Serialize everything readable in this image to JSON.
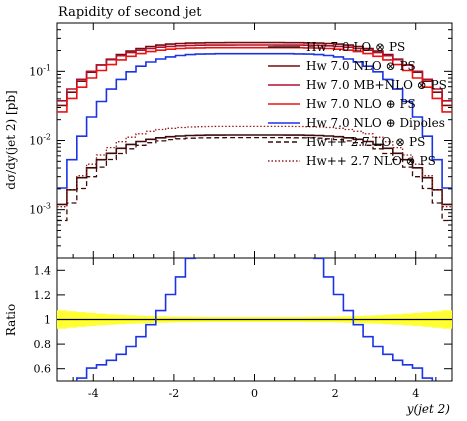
{
  "chart_data": {
    "type": "line",
    "title": "Rapidity of second jet",
    "ylabel": "dσ/dy(jet 2) [pb]",
    "xlabel": "y(jet 2)",
    "ratio_ylabel": "Ratio",
    "xlim": [
      -4.9,
      4.9
    ],
    "ylim": [
      0.0002,
      0.5
    ],
    "yscale": "log",
    "ratio_ylim": [
      0.5,
      1.5
    ],
    "x_ticks": [
      "-4",
      "-2",
      "0",
      "2",
      "4"
    ],
    "y_ticks": [
      "10^{-3}",
      "10^{-2}",
      "10^{-1}"
    ],
    "ratio_ticks": [
      "0.6",
      "0.8",
      "1",
      "1.2",
      "1.4"
    ],
    "legend_position": "top-right",
    "series": [
      {
        "name": "Hw 7.0 LO ⊗ PS",
        "color": "#3c0a0a",
        "style": "solid",
        "peak": 0.012,
        "edge": 0.0009
      },
      {
        "name": "Hw 7.0 NLO ⊗ PS",
        "color": "#7a0a0a",
        "style": "solid",
        "peak": 0.26,
        "edge": 0.025
      },
      {
        "name": "Hw 7.0 MB+NLO ⊗ PS",
        "color": "#b01030",
        "style": "solid",
        "peak": 0.24,
        "edge": 0.03
      },
      {
        "name": "Hw 7.0 NLO ⊕ PS",
        "color": "#ee1111",
        "style": "solid",
        "peak": 0.22,
        "edge": 0.02
      },
      {
        "name": "Hw 7.0 NLO ⊕ Dipoles",
        "color": "#1a33e6",
        "style": "solid",
        "peak": 0.18,
        "edge": 0.0012
      },
      {
        "name": "Hw++ 2.7 LO ⊗ PS",
        "color": "#3c0a0a",
        "style": "dashed",
        "peak": 0.011,
        "edge": 0.0005
      },
      {
        "name": "Hw++ 2.7 NLO ⊗ PS",
        "color": "#9a1a1a",
        "style": "dotted",
        "peak": 0.016,
        "edge": 0.0008
      }
    ]
  }
}
